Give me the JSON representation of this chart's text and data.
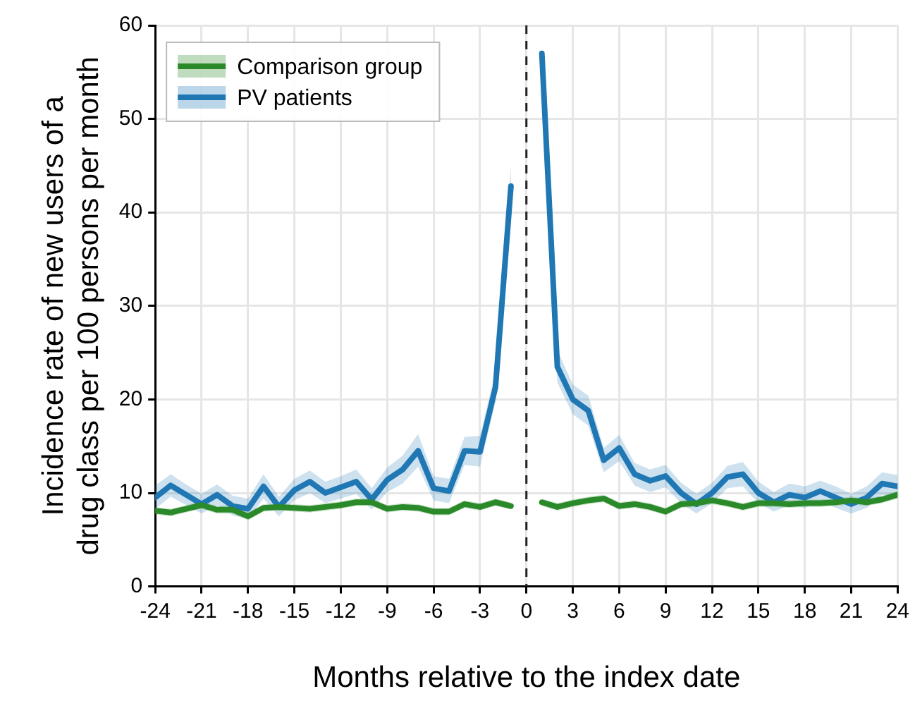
{
  "chart_data": {
    "type": "line",
    "xlabel": "Months relative to the index date",
    "ylabel": "Incidence rate of new users of a\ndrug class per 100 persons per month",
    "x": [
      -24,
      -23,
      -22,
      -21,
      -20,
      -19,
      -18,
      -17,
      -16,
      -15,
      -14,
      -13,
      -12,
      -11,
      -10,
      -9,
      -8,
      -7,
      -6,
      -5,
      -4,
      -3,
      -2,
      -1,
      0,
      1,
      2,
      3,
      4,
      5,
      6,
      7,
      8,
      9,
      10,
      11,
      12,
      13,
      14,
      15,
      16,
      17,
      18,
      19,
      20,
      21,
      22,
      23,
      24
    ],
    "series": [
      {
        "name": "Comparison group",
        "color": "#2a8a2a",
        "values": [
          8.1,
          7.9,
          8.3,
          8.7,
          8.2,
          8.2,
          7.5,
          8.4,
          8.5,
          8.4,
          8.3,
          8.5,
          8.7,
          9.0,
          9.0,
          8.3,
          8.5,
          8.4,
          8.0,
          8.0,
          8.8,
          8.5,
          9.0,
          8.6,
          null,
          9.0,
          8.5,
          8.9,
          9.2,
          9.4,
          8.6,
          8.8,
          8.5,
          8.0,
          8.8,
          8.9,
          9.2,
          8.9,
          8.5,
          8.9,
          8.9,
          8.8,
          8.9,
          8.9,
          9.0,
          9.2,
          9.0,
          9.3,
          9.8
        ],
        "lower": [
          7.7,
          7.5,
          7.9,
          8.3,
          7.8,
          7.8,
          7.1,
          8.0,
          8.1,
          8.0,
          7.9,
          8.1,
          8.3,
          8.6,
          8.6,
          7.9,
          8.1,
          8.0,
          7.6,
          7.6,
          8.4,
          8.1,
          8.6,
          8.2,
          null,
          8.6,
          8.1,
          8.5,
          8.8,
          9.0,
          8.2,
          8.4,
          8.1,
          7.6,
          8.4,
          8.5,
          8.8,
          8.5,
          8.1,
          8.5,
          8.5,
          8.4,
          8.5,
          8.5,
          8.6,
          8.8,
          8.6,
          8.9,
          9.4
        ],
        "upper": [
          8.5,
          8.3,
          8.7,
          9.1,
          8.6,
          8.6,
          7.9,
          8.8,
          8.9,
          8.8,
          8.7,
          8.9,
          9.1,
          9.4,
          9.4,
          8.7,
          8.9,
          8.8,
          8.4,
          8.4,
          9.2,
          8.9,
          9.4,
          9.0,
          null,
          9.4,
          8.9,
          9.3,
          9.6,
          9.8,
          9.0,
          9.2,
          8.9,
          8.4,
          9.2,
          9.3,
          9.6,
          9.3,
          8.9,
          9.3,
          9.3,
          9.2,
          9.3,
          9.3,
          9.4,
          9.6,
          9.4,
          9.7,
          10.2
        ]
      },
      {
        "name": "PV patients",
        "color": "#1f77b4",
        "values": [
          9.5,
          10.8,
          9.8,
          8.8,
          9.8,
          8.6,
          8.3,
          10.7,
          8.5,
          10.3,
          11.2,
          10,
          10.6,
          11.2,
          9.3,
          11.4,
          12.5,
          14.5,
          10.5,
          10.2,
          14.5,
          14.4,
          21.3,
          42.8,
          null,
          57,
          23.5,
          20,
          18.8,
          13.5,
          14.8,
          12,
          11.3,
          11.8,
          10,
          8.8,
          10,
          11.7,
          12,
          10,
          9,
          9.8,
          9.5,
          10.2,
          9.5,
          8.8,
          9.5,
          11,
          10.7
        ],
        "lower": [
          8.3,
          9.6,
          8.7,
          7.8,
          8.7,
          7.6,
          7.2,
          9.4,
          7.5,
          9.2,
          10,
          8.9,
          9.4,
          9.9,
          8.2,
          10.1,
          11,
          12.8,
          9.2,
          8.9,
          13,
          12.8,
          19.7,
          40.6,
          null,
          56.2,
          21.8,
          18.4,
          17.2,
          12.2,
          13.4,
          10.8,
          10.1,
          10.6,
          8.9,
          7.8,
          8.9,
          10.5,
          10.7,
          8.9,
          8,
          8.7,
          8.4,
          9.1,
          8.4,
          7.8,
          8.4,
          9.8,
          9.5
        ],
        "upper": [
          10.8,
          12,
          10.9,
          9.9,
          10.9,
          9.7,
          9.4,
          12,
          9.6,
          11.5,
          12.4,
          11.2,
          11.8,
          12.5,
          10.5,
          12.7,
          14,
          16.3,
          11.8,
          11.5,
          16,
          16.1,
          23,
          45.2,
          null,
          57.8,
          25.3,
          21.6,
          20.4,
          14.8,
          16.2,
          13.2,
          12.5,
          13,
          11.1,
          9.9,
          11.1,
          12.9,
          13.3,
          11.2,
          10.1,
          11,
          10.7,
          11.3,
          10.7,
          9.9,
          10.7,
          12.2,
          11.9
        ]
      }
    ],
    "xlim": [
      -24,
      24
    ],
    "xticks": [
      -24,
      -21,
      -18,
      -15,
      -12,
      -9,
      -6,
      -3,
      0,
      3,
      6,
      9,
      12,
      15,
      18,
      21,
      24
    ],
    "ylim": [
      0,
      60
    ],
    "yticks": [
      0,
      10,
      20,
      30,
      40,
      50,
      60
    ],
    "ref_lines": [
      {
        "axis": "x",
        "value": 0,
        "color": "#222222",
        "line_style": "dashed"
      }
    ],
    "grid": true,
    "legend": "top left",
    "marker": "none",
    "line_style": "solid"
  }
}
